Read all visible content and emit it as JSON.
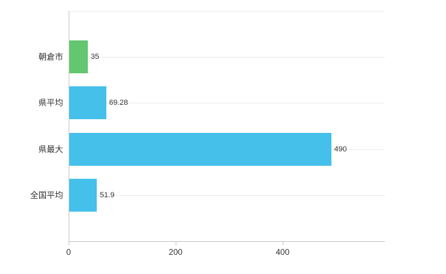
{
  "chart_data": {
    "type": "bar",
    "orientation": "horizontal",
    "categories": [
      "朝倉市",
      "県平均",
      "県最大",
      "全国平均"
    ],
    "values": [
      35,
      69.28,
      490,
      51.9
    ],
    "value_labels": [
      "35",
      "69.28",
      "490",
      "51.9"
    ],
    "series": [
      {
        "name": "value",
        "values": [
          35,
          69.28,
          490,
          51.9
        ]
      }
    ],
    "bar_colors": [
      "#63c76f",
      "#45c0ea",
      "#45c0ea",
      "#45c0ea"
    ],
    "x_ticks": [
      0,
      200,
      400
    ],
    "x_tick_labels": [
      "0",
      "200",
      "400"
    ],
    "xlim": [
      0,
      590
    ],
    "grid": "horizontal-category-lines",
    "legend": "none"
  }
}
